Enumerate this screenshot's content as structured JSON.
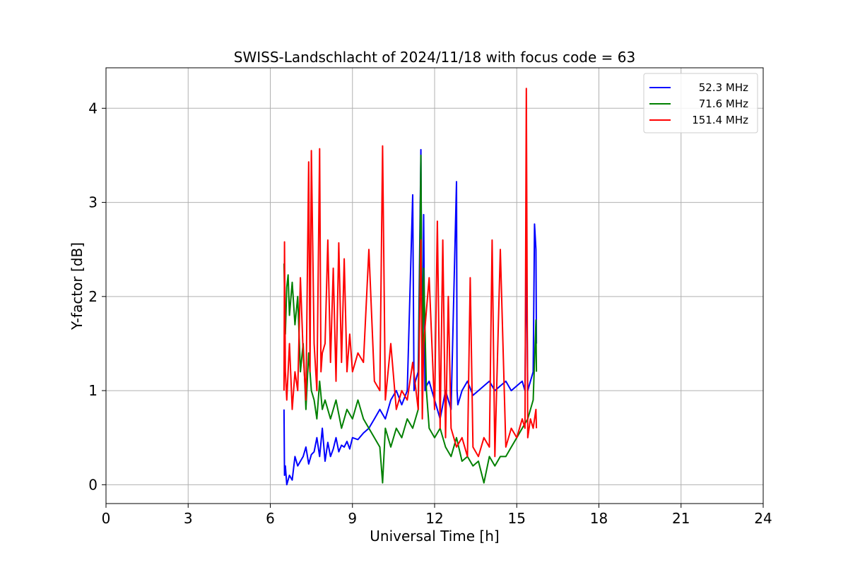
{
  "chart_data": {
    "type": "line",
    "title": "SWISS-Landschlacht of 2024/11/18 with focus code = 63",
    "xlabel": "Universal Time [h]",
    "ylabel": "Y-factor [dB]",
    "xlim": [
      0,
      24
    ],
    "ylim": [
      -0.2,
      4.43
    ],
    "xticks": [
      "0",
      "3",
      "6",
      "9",
      "12",
      "15",
      "18",
      "21",
      "24"
    ],
    "yticks": [
      "0",
      "1",
      "2",
      "3",
      "4"
    ],
    "grid": true,
    "legend_position": "top-right",
    "series": [
      {
        "name": "52.3 MHz",
        "color": "#0000ff",
        "x": [
          6.5,
          6.52,
          6.55,
          6.6,
          6.7,
          6.8,
          6.9,
          7.0,
          7.1,
          7.2,
          7.3,
          7.4,
          7.5,
          7.6,
          7.7,
          7.8,
          7.9,
          8.0,
          8.1,
          8.2,
          8.3,
          8.4,
          8.5,
          8.6,
          8.7,
          8.8,
          8.9,
          9.0,
          9.2,
          9.4,
          9.6,
          9.8,
          10.0,
          10.2,
          10.4,
          10.6,
          10.8,
          11.0,
          11.2,
          11.25,
          11.3,
          11.4,
          11.5,
          11.55,
          11.6,
          11.65,
          11.7,
          11.8,
          11.9,
          12.0,
          12.2,
          12.4,
          12.6,
          12.8,
          12.82,
          12.85,
          12.9,
          13.0,
          13.2,
          13.4,
          13.6,
          13.8,
          14.0,
          14.2,
          14.4,
          14.6,
          14.8,
          15.0,
          15.2,
          15.3,
          15.35,
          15.4,
          15.5,
          15.6,
          15.65,
          15.7,
          15.72
        ],
        "values": [
          0.8,
          0.1,
          0.2,
          0.0,
          0.1,
          0.05,
          0.3,
          0.2,
          0.25,
          0.3,
          0.4,
          0.22,
          0.32,
          0.35,
          0.5,
          0.3,
          0.6,
          0.25,
          0.45,
          0.3,
          0.38,
          0.5,
          0.35,
          0.42,
          0.4,
          0.46,
          0.38,
          0.5,
          0.48,
          0.55,
          0.6,
          0.7,
          0.8,
          0.7,
          0.9,
          1.0,
          0.85,
          1.0,
          3.08,
          1.0,
          1.1,
          1.2,
          3.56,
          1.1,
          2.87,
          1.0,
          1.05,
          1.1,
          1.0,
          0.9,
          0.7,
          1.0,
          0.8,
          3.22,
          1.0,
          0.85,
          0.9,
          1.0,
          1.1,
          0.95,
          1.0,
          1.05,
          1.1,
          1.0,
          1.05,
          1.1,
          1.0,
          1.05,
          1.1,
          1.0,
          2.52,
          1.0,
          1.1,
          1.2,
          2.77,
          2.5,
          1.5
        ]
      },
      {
        "name": "71.6 MHz",
        "color": "#008000",
        "x": [
          6.5,
          6.55,
          6.6,
          6.65,
          6.7,
          6.8,
          6.9,
          7.0,
          7.1,
          7.2,
          7.3,
          7.4,
          7.5,
          7.6,
          7.7,
          7.8,
          7.9,
          8.0,
          8.2,
          8.4,
          8.6,
          8.8,
          9.0,
          9.2,
          9.4,
          9.6,
          9.8,
          10.0,
          10.1,
          10.2,
          10.4,
          10.6,
          10.8,
          11.0,
          11.2,
          11.4,
          11.5,
          11.55,
          11.6,
          11.7,
          11.8,
          12.0,
          12.2,
          12.4,
          12.6,
          12.8,
          13.0,
          13.2,
          13.4,
          13.6,
          13.8,
          14.0,
          14.2,
          14.4,
          14.6,
          14.8,
          15.0,
          15.2,
          15.4,
          15.6,
          15.7,
          15.72
        ],
        "values": [
          2.35,
          1.6,
          2.1,
          2.23,
          1.8,
          2.15,
          1.7,
          2.0,
          1.2,
          1.5,
          0.8,
          1.4,
          1.0,
          0.9,
          0.7,
          1.1,
          0.8,
          0.9,
          0.7,
          0.9,
          0.6,
          0.8,
          0.7,
          0.9,
          0.7,
          0.6,
          0.5,
          0.4,
          0.02,
          0.6,
          0.4,
          0.6,
          0.5,
          0.7,
          0.6,
          0.8,
          3.5,
          0.9,
          2.3,
          1.0,
          0.6,
          0.5,
          0.6,
          0.4,
          0.3,
          0.5,
          0.25,
          0.3,
          0.2,
          0.25,
          0.02,
          0.3,
          0.2,
          0.3,
          0.3,
          0.4,
          0.5,
          0.6,
          0.7,
          0.9,
          1.75,
          1.2
        ]
      },
      {
        "name": "151.4 MHz",
        "color": "#ff0000",
        "x": [
          6.5,
          6.52,
          6.55,
          6.6,
          6.7,
          6.8,
          6.9,
          7.0,
          7.1,
          7.2,
          7.3,
          7.4,
          7.45,
          7.5,
          7.6,
          7.7,
          7.8,
          7.85,
          7.9,
          8.0,
          8.1,
          8.2,
          8.3,
          8.4,
          8.5,
          8.6,
          8.7,
          8.8,
          8.9,
          9.0,
          9.2,
          9.4,
          9.6,
          9.8,
          10.0,
          10.1,
          10.2,
          10.4,
          10.6,
          10.8,
          11.0,
          11.2,
          11.4,
          11.5,
          11.55,
          11.6,
          11.8,
          12.0,
          12.1,
          12.2,
          12.3,
          12.4,
          12.5,
          12.6,
          12.8,
          13.0,
          13.2,
          13.3,
          13.4,
          13.6,
          13.8,
          14.0,
          14.1,
          14.2,
          14.4,
          14.6,
          14.8,
          15.0,
          15.2,
          15.3,
          15.35,
          15.4,
          15.5,
          15.6,
          15.7,
          15.72
        ],
        "values": [
          1.0,
          2.58,
          1.2,
          0.9,
          1.5,
          0.8,
          1.2,
          1.0,
          2.2,
          1.4,
          0.9,
          3.43,
          1.2,
          3.55,
          1.5,
          1.0,
          3.57,
          1.2,
          1.4,
          1.5,
          2.6,
          1.3,
          2.3,
          1.1,
          2.57,
          1.3,
          2.4,
          1.2,
          1.6,
          1.2,
          1.4,
          1.3,
          2.5,
          1.1,
          1.0,
          3.6,
          0.9,
          1.5,
          0.8,
          1.0,
          0.9,
          1.3,
          0.8,
          2.6,
          0.7,
          1.5,
          2.2,
          0.8,
          2.8,
          0.6,
          2.6,
          0.5,
          2.0,
          0.6,
          0.4,
          0.5,
          0.3,
          2.2,
          0.4,
          0.3,
          0.5,
          0.4,
          2.6,
          0.3,
          2.5,
          0.4,
          0.6,
          0.5,
          0.7,
          0.6,
          4.21,
          0.5,
          0.7,
          0.6,
          0.8,
          0.6
        ]
      }
    ]
  }
}
